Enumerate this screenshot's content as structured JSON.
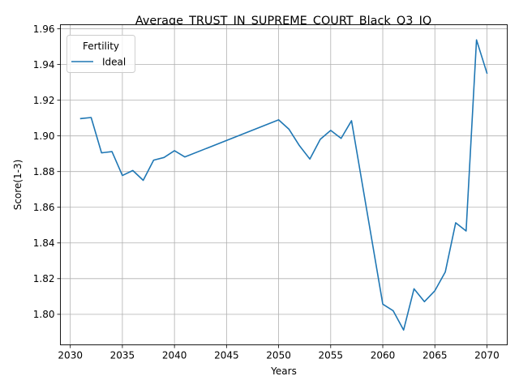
{
  "chart_data": {
    "type": "line",
    "title": "Average_TRUST_IN_SUPREME_COURT_Black_Q3_IQ",
    "xlabel": "Years",
    "ylabel": "Score(1-3)",
    "xlim": [
      2029.05,
      2071.95
    ],
    "ylim": [
      1.7829,
      1.9623
    ],
    "xticks": [
      2030,
      2035,
      2040,
      2045,
      2050,
      2055,
      2060,
      2065,
      2070
    ],
    "yticks": [
      1.8,
      1.82,
      1.84,
      1.86,
      1.88,
      1.9,
      1.92,
      1.94,
      1.96
    ],
    "xtick_labels": [
      "2030",
      "2035",
      "2040",
      "2045",
      "2050",
      "2055",
      "2060",
      "2065",
      "2070"
    ],
    "ytick_labels": [
      "1.80",
      "1.82",
      "1.84",
      "1.86",
      "1.88",
      "1.90",
      "1.92",
      "1.94",
      "1.96"
    ],
    "grid": true,
    "legend": {
      "title": "Fertility",
      "placement": "top-left"
    },
    "series": [
      {
        "name": "Ideal",
        "color": "#1f77b4",
        "x": [
          2031,
          2032,
          2033,
          2034,
          2035,
          2036,
          2037,
          2038,
          2039,
          2040,
          2041,
          2050,
          2051,
          2052,
          2053,
          2054,
          2055,
          2056,
          2057,
          2060,
          2061,
          2062,
          2063,
          2064,
          2065,
          2066,
          2067,
          2068,
          2069,
          2070
        ],
        "y": [
          1.9097,
          1.9103,
          1.8905,
          1.8912,
          1.8778,
          1.8806,
          1.8751,
          1.8864,
          1.8879,
          1.8917,
          1.8882,
          1.909,
          1.9037,
          1.8945,
          1.887,
          1.8981,
          1.9031,
          1.8986,
          1.9085,
          1.8057,
          1.802,
          1.7912,
          1.8143,
          1.8071,
          1.8132,
          1.8237,
          1.8513,
          1.8467,
          1.9538,
          1.9352
        ]
      }
    ]
  }
}
